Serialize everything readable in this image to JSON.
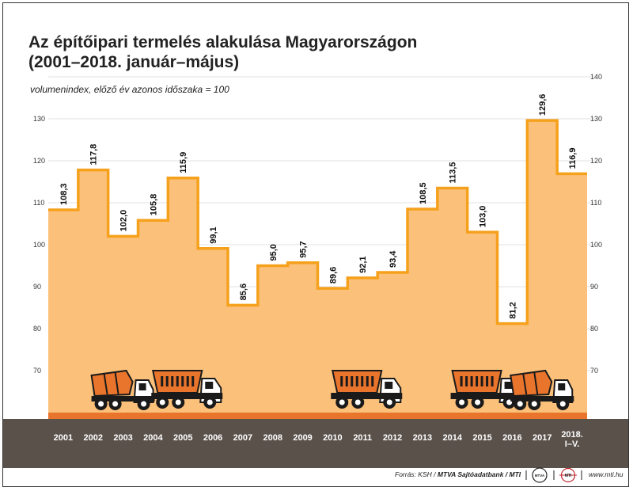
{
  "chart_data": {
    "type": "area",
    "title_lines": [
      "Az építőipari termelés alakulása Magyarországon",
      "(2001–2018. január–május)"
    ],
    "subtitle": "volumenindex, előző év azonos időszaka = 100",
    "categories": [
      "2001",
      "2002",
      "2003",
      "2004",
      "2005",
      "2006",
      "2007",
      "2008",
      "2009",
      "2010",
      "2011",
      "2012",
      "2013",
      "2014",
      "2015",
      "2016",
      "2017",
      "2018. I–V."
    ],
    "values": [
      108.3,
      117.8,
      102.0,
      105.8,
      115.9,
      99.1,
      85.6,
      95.0,
      95.7,
      89.6,
      92.1,
      93.4,
      108.5,
      113.5,
      103.0,
      81.2,
      129.6,
      116.9
    ],
    "value_labels": [
      "108,3",
      "117,8",
      "102,0",
      "105,8",
      "115,9",
      "99,1",
      "85,6",
      "95,0",
      "95,7",
      "89,6",
      "92,1",
      "93,4",
      "108,5",
      "113,5",
      "103,0",
      "81,2",
      "129,6",
      "116,9"
    ],
    "yticks": [
      70,
      80,
      90,
      100,
      110,
      120,
      130,
      140
    ],
    "yticks_right": [
      70,
      80,
      90,
      100,
      110,
      120,
      130,
      140
    ],
    "yticks_left": [
      70,
      80,
      90,
      100,
      110,
      120,
      130
    ],
    "ylim": [
      60,
      140
    ],
    "grid": true,
    "colors": {
      "fill": "#fbc07a",
      "line": "#f6a11c",
      "base": "#e9742c",
      "axis_band": "#5a514b",
      "label_text": "#ffffff",
      "grid": "#e2e2e2"
    },
    "vehicles": [
      {
        "type": "mixer-truck",
        "icon": "concrete-mixer-truck-icon",
        "category_index": 2
      },
      {
        "type": "dump-truck",
        "icon": "dump-truck-icon",
        "category_index": 4
      },
      {
        "type": "dump-truck",
        "icon": "dump-truck-icon",
        "category_index": 10
      },
      {
        "type": "dump-truck",
        "icon": "dump-truck-icon",
        "category_index": 14
      },
      {
        "type": "mixer-truck",
        "icon": "concrete-mixer-truck-icon",
        "category_index": 16
      }
    ]
  },
  "footer": {
    "source_prefix": "Forrás: KSH / ",
    "source_bold": "MTVA Sajtóadatbank / MTI",
    "badge_left": "MTVA",
    "badge_right": "MTI",
    "url": "www.mti.hu"
  }
}
